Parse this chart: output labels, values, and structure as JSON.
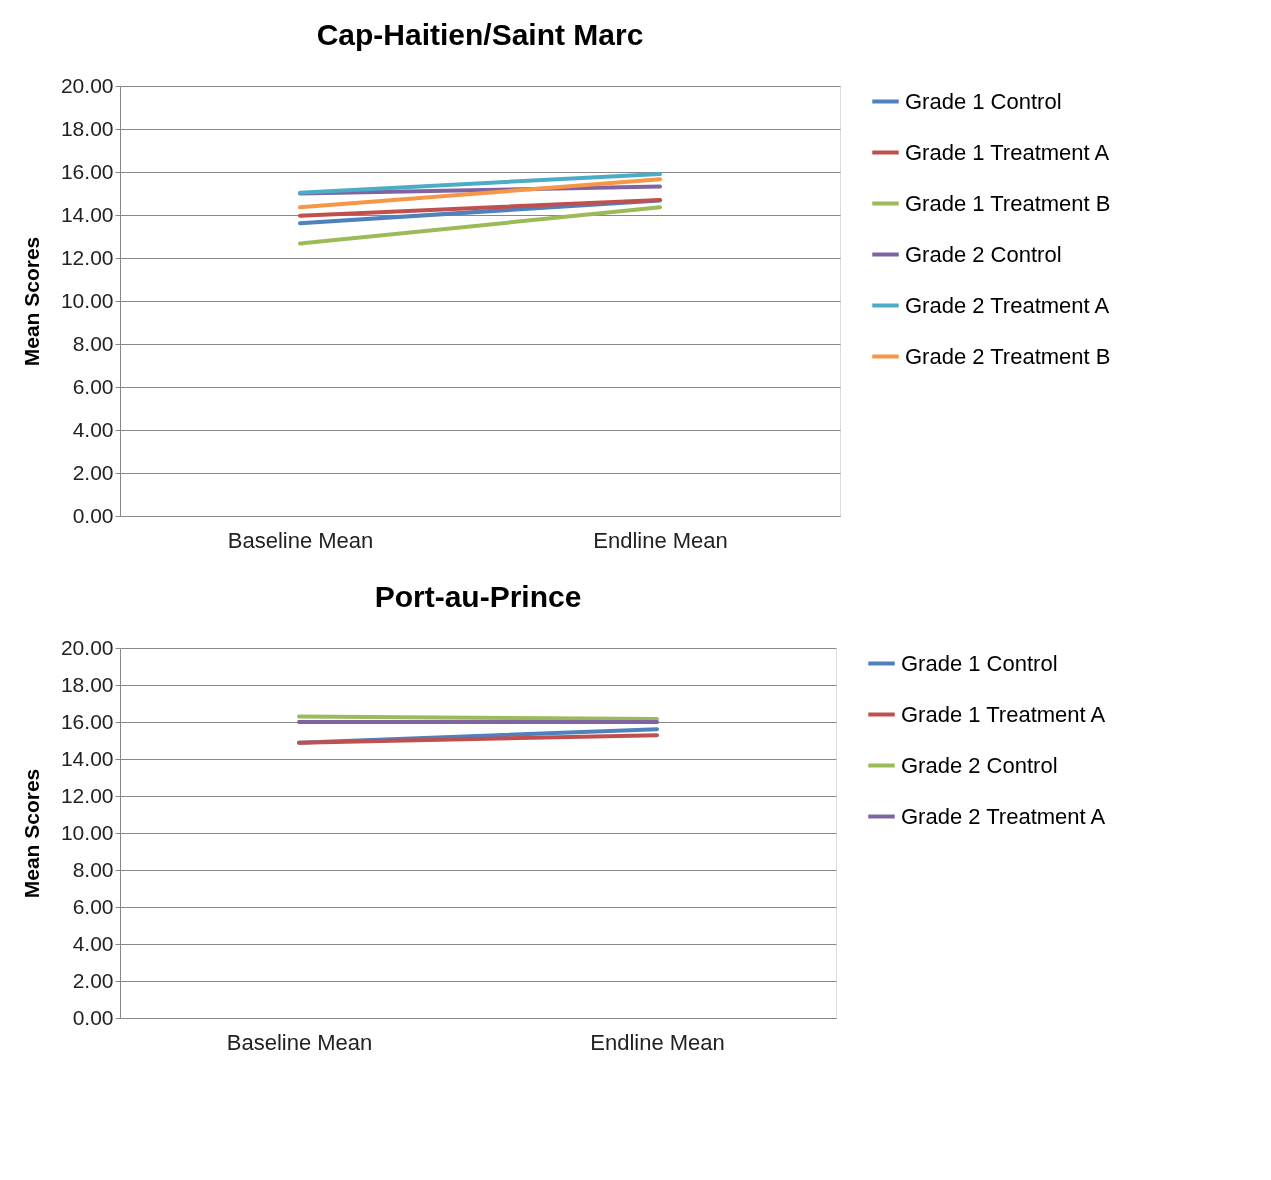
{
  "chart_data": [
    {
      "type": "line",
      "title": "Cap-Haitien/Saint Marc",
      "ylabel": "Mean Scores",
      "categories": [
        "Baseline Mean",
        "Endline Mean"
      ],
      "series": [
        {
          "name": "Grade 1 Control",
          "color": "#4f81bd",
          "values": [
            13.62,
            14.68
          ]
        },
        {
          "name": "Grade 1 Treatment A",
          "color": "#c0504d",
          "values": [
            13.97,
            14.7
          ]
        },
        {
          "name": "Grade 1 Treatment B",
          "color": "#9bbb59",
          "values": [
            12.67,
            14.36
          ]
        },
        {
          "name": "Grade 2 Control",
          "color": "#8064a2",
          "values": [
            15.0,
            15.32
          ]
        },
        {
          "name": "Grade 2 Treatment A",
          "color": "#4bacc6",
          "values": [
            15.04,
            15.91
          ]
        },
        {
          "name": "Grade 2 Treatment B",
          "color": "#f79646",
          "values": [
            14.36,
            15.66
          ]
        }
      ],
      "ylim": [
        0,
        20
      ],
      "yticks": [
        {
          "value": 0,
          "label": "0.00"
        },
        {
          "value": 2,
          "label": "2.00"
        },
        {
          "value": 4,
          "label": "4.00"
        },
        {
          "value": 6,
          "label": "6.00"
        },
        {
          "value": 8,
          "label": "8.00"
        },
        {
          "value": 10,
          "label": "10.00"
        },
        {
          "value": 12,
          "label": "12.00"
        },
        {
          "value": 14,
          "label": "14.00"
        },
        {
          "value": 16,
          "label": "16.00"
        },
        {
          "value": 18,
          "label": "18.00"
        },
        {
          "value": 20,
          "label": "20.00"
        }
      ],
      "grid": "y",
      "legend": "right",
      "marker": "none",
      "line_style": "solid"
    },
    {
      "type": "line",
      "title": "Port-au-Prince",
      "ylabel": "Mean Scores",
      "categories": [
        "Baseline Mean",
        "Endline Mean"
      ],
      "series": [
        {
          "name": "Grade 1 Control",
          "color": "#4f81bd",
          "values": [
            14.88,
            15.61
          ]
        },
        {
          "name": "Grade 1 Treatment A",
          "color": "#c0504d",
          "values": [
            14.88,
            15.29
          ]
        },
        {
          "name": "Grade 2 Control",
          "color": "#9bbb59",
          "values": [
            16.3,
            16.16
          ]
        },
        {
          "name": "Grade 2 Treatment A",
          "color": "#8064a2",
          "values": [
            16.0,
            16.0
          ]
        }
      ],
      "ylim": [
        0,
        20
      ],
      "yticks": [
        {
          "value": 0,
          "label": "0.00"
        },
        {
          "value": 2,
          "label": "2.00"
        },
        {
          "value": 4,
          "label": "4.00"
        },
        {
          "value": 6,
          "label": "6.00"
        },
        {
          "value": 8,
          "label": "8.00"
        },
        {
          "value": 10,
          "label": "10.00"
        },
        {
          "value": 12,
          "label": "12.00"
        },
        {
          "value": 14,
          "label": "14.00"
        },
        {
          "value": 16,
          "label": "16.00"
        },
        {
          "value": 18,
          "label": "18.00"
        },
        {
          "value": 20,
          "label": "20.00"
        }
      ],
      "grid": "y",
      "legend": "right",
      "marker": "none",
      "line_style": "solid"
    }
  ]
}
